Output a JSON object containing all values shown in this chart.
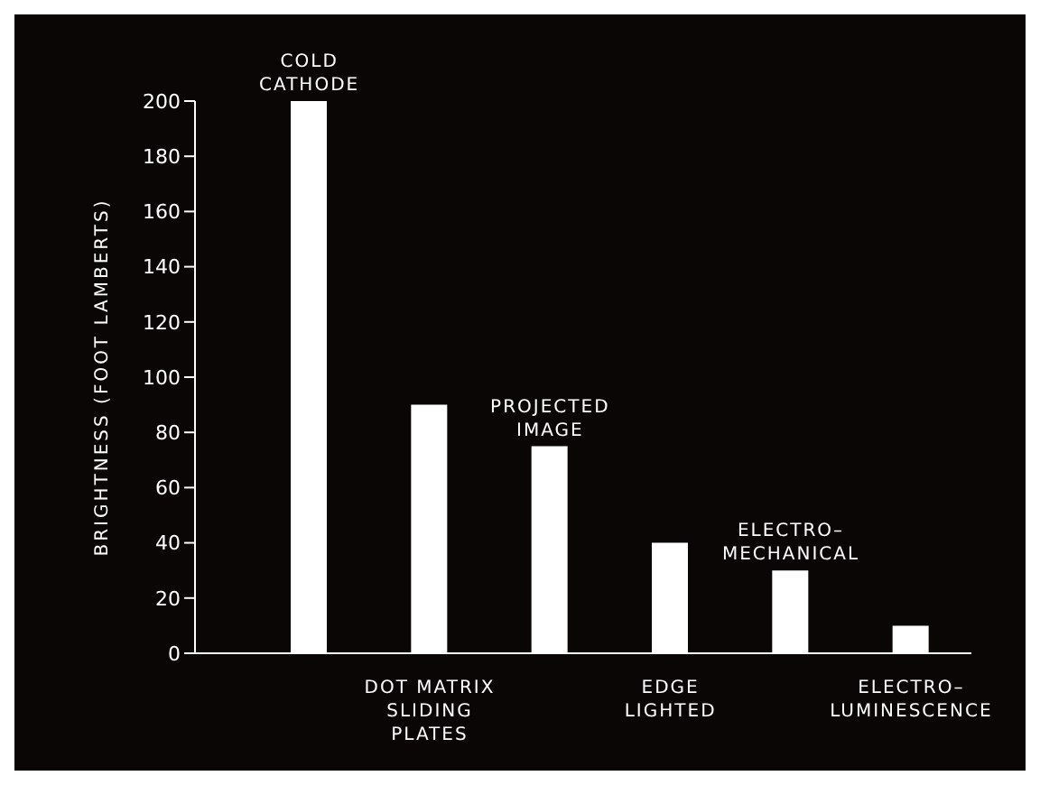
{
  "chart_data": {
    "type": "bar",
    "ylabel": "BRIGHTNESS (FOOT LAMBERTS)",
    "categories": [
      "COLD\nCATHODE",
      "DOT MATRIX\nSLIDING\nPLATES",
      "PROJECTED\nIMAGE",
      "EDGE\nLIGHTED",
      "ELECTRO–\nMECHANICAL",
      "ELECTRO–\nLUMINESCENCE"
    ],
    "values": [
      200,
      90,
      75,
      40,
      30,
      10
    ],
    "color": "#ffffff",
    "ylim": [
      0,
      200
    ],
    "yticks": [
      0,
      20,
      40,
      60,
      80,
      100,
      120,
      140,
      160,
      180,
      200
    ],
    "grid": false
  }
}
